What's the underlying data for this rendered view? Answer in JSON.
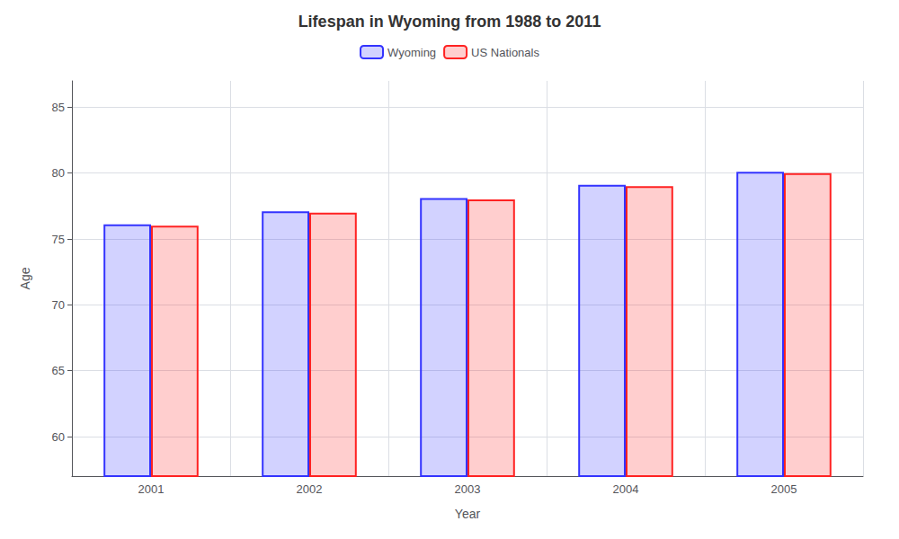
{
  "chart_data": {
    "type": "bar",
    "title": "Lifespan in Wyoming from 1988 to 2011",
    "xlabel": "Year",
    "ylabel": "Age",
    "categories": [
      2001,
      2002,
      2003,
      2004,
      2005
    ],
    "series": [
      {
        "name": "Wyoming",
        "color": "#3333ff",
        "values": [
          76.1,
          77.1,
          78.1,
          79.1,
          80.1
        ]
      },
      {
        "name": "US Nationals",
        "color": "#ff2222",
        "values": [
          76.0,
          77.0,
          78.0,
          79.0,
          80.0
        ]
      }
    ],
    "ylim": [
      57,
      87
    ],
    "yticks": [
      60,
      65,
      70,
      75,
      80,
      85
    ],
    "grid": true,
    "legend": "top"
  }
}
